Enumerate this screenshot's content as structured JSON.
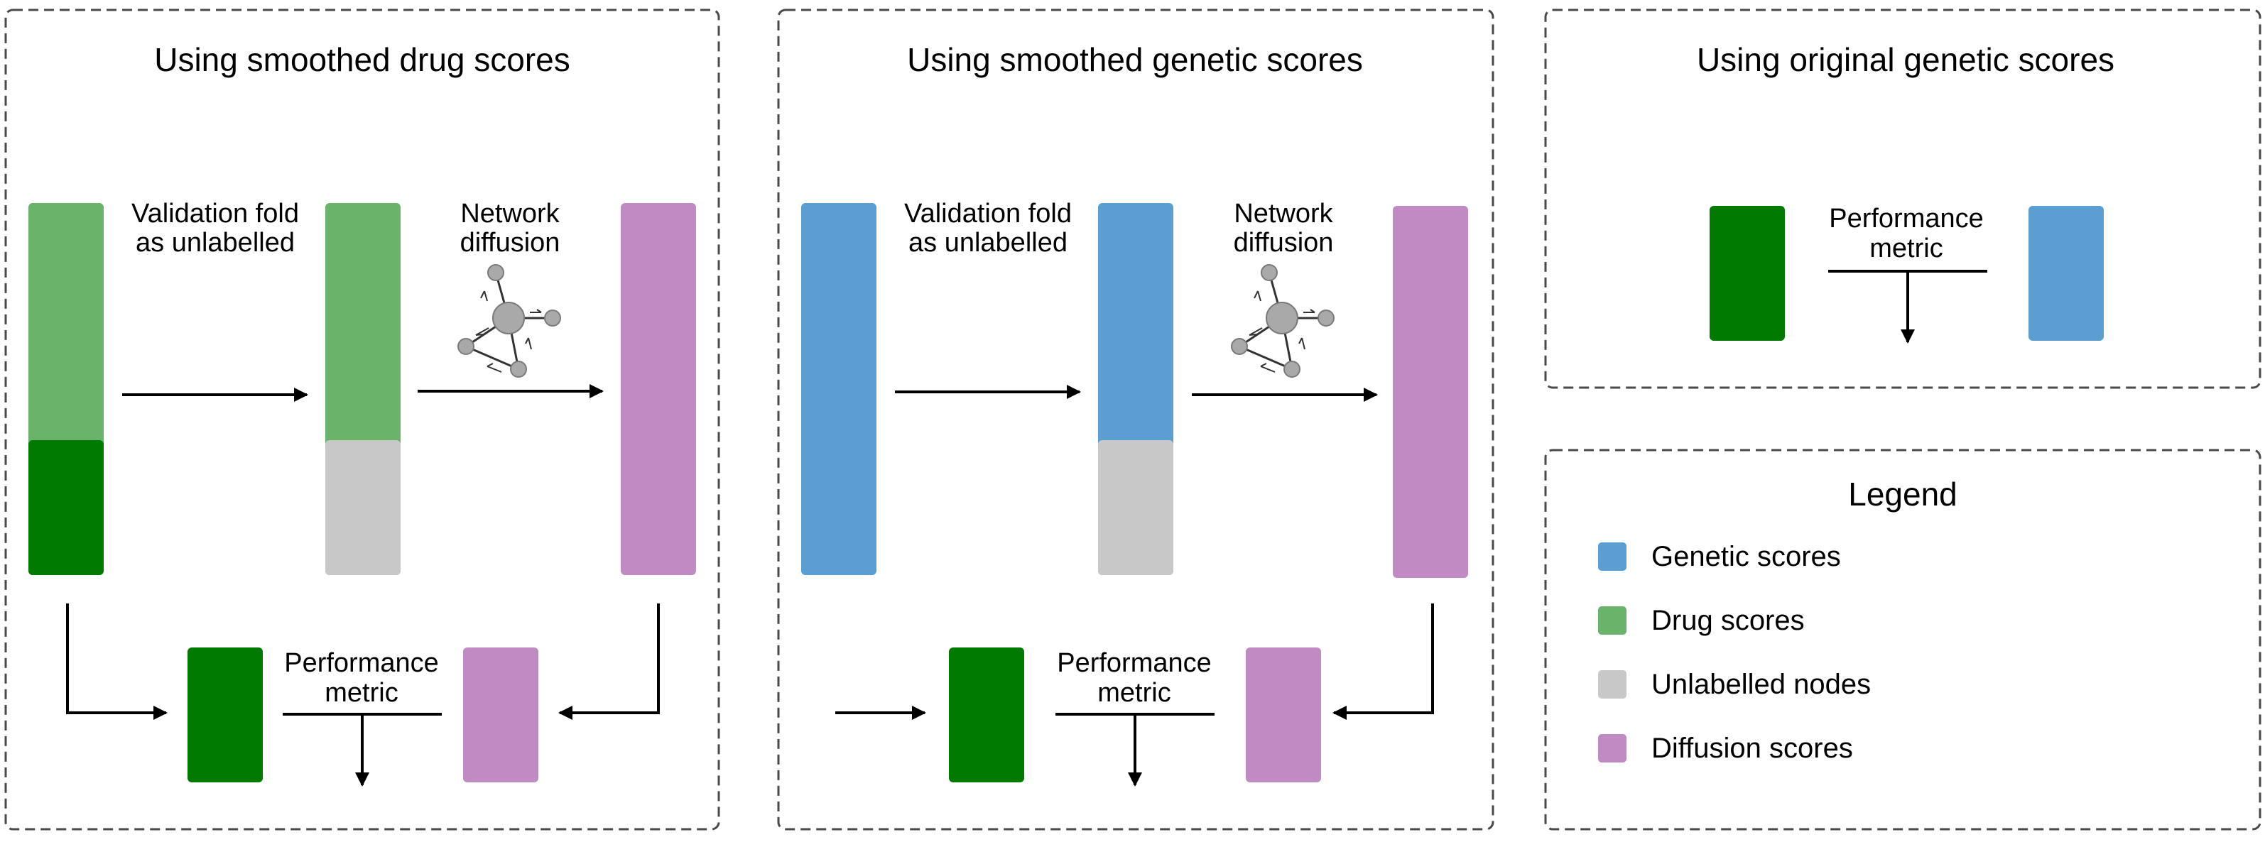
{
  "panels": {
    "drug": {
      "title": "Using smoothed drug scores",
      "step1": [
        "Validation fold",
        "as unlabelled"
      ],
      "step2": [
        "Network",
        "diffusion"
      ],
      "metric": [
        "Performance",
        "metric"
      ]
    },
    "genetic": {
      "title": "Using smoothed genetic scores",
      "step1": [
        "Validation fold",
        "as unlabelled"
      ],
      "step2": [
        "Network",
        "diffusion"
      ],
      "metric": [
        "Performance",
        "metric"
      ]
    },
    "original": {
      "title": "Using original genetic scores",
      "metric": [
        "Performance",
        "metric"
      ]
    }
  },
  "legend": {
    "title": "Legend",
    "items": [
      {
        "label": "Genetic scores",
        "color": "#5b9fd2"
      },
      {
        "label": "Drug scores",
        "color": "#69b36b"
      },
      {
        "label": "Unlabelled nodes",
        "color": "#c8c8c8"
      },
      {
        "label": "Diffusion scores",
        "color": "#bf8bc2"
      }
    ]
  },
  "colors": {
    "genetic": "#5b9fd2",
    "drug_light": "#69b36b",
    "drug_dark": "#007a00",
    "unlabelled": "#c8c8c8",
    "diffusion": "#bf8bc2"
  }
}
